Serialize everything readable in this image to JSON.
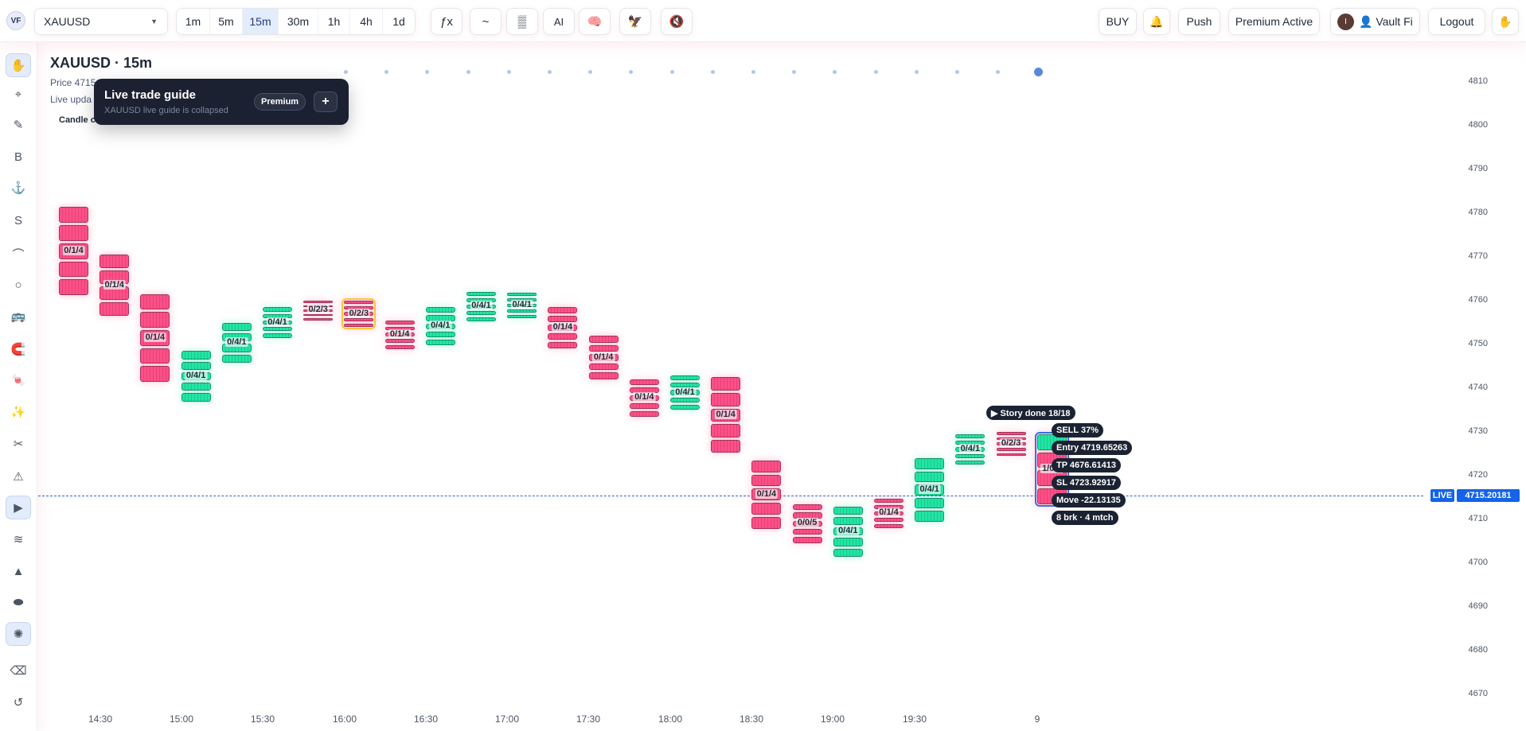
{
  "header": {
    "user_initials": "VF",
    "symbol": "XAUUSD",
    "timeframes": [
      "1m",
      "5m",
      "15m",
      "30m",
      "1h",
      "4h",
      "1d"
    ],
    "active_timeframe": "15m",
    "tools": [
      {
        "name": "formula-icon",
        "glyph": "ƒx"
      },
      {
        "name": "wave-icon",
        "glyph": "~"
      },
      {
        "name": "grid-pattern-icon",
        "glyph": "▒"
      },
      {
        "name": "ai-button",
        "glyph": "AI"
      },
      {
        "name": "brain-icon",
        "glyph": "🧠"
      },
      {
        "name": "eagle-icon",
        "glyph": "🦅"
      },
      {
        "name": "mute-icon",
        "glyph": "🔇"
      }
    ],
    "buy_label": "BUY",
    "bell_icon": "bell-icon",
    "push_label": "Push",
    "premium_label": "Premium Active",
    "account_initial": "I",
    "account_label": "👤 Vault Fi",
    "logout_label": "Logout",
    "hand_icon": "hand-icon"
  },
  "sidebar": {
    "tools": [
      {
        "name": "pan-tool",
        "glyph": "✋",
        "active": true
      },
      {
        "name": "crosshair-tool",
        "glyph": "⌖"
      },
      {
        "name": "pencil-tool",
        "glyph": "✎"
      },
      {
        "name": "b-tool",
        "glyph": "B"
      },
      {
        "name": "anchor-tool",
        "glyph": "⚓"
      },
      {
        "name": "s-tool",
        "glyph": "S"
      },
      {
        "name": "curve-tool",
        "glyph": "⌒"
      },
      {
        "name": "circle-tool",
        "glyph": "○"
      },
      {
        "name": "bus-tool",
        "glyph": "🚌"
      },
      {
        "name": "magnet-tool",
        "glyph": "🧲"
      },
      {
        "name": "candy-tool",
        "glyph": "🍬"
      },
      {
        "name": "sparkle-tool",
        "glyph": "✨"
      },
      {
        "name": "cut-tool",
        "glyph": "✂"
      },
      {
        "name": "warning-tool",
        "glyph": "⚠"
      },
      {
        "name": "play-tool",
        "glyph": "▶",
        "active": true
      },
      {
        "name": "waves-tool",
        "glyph": "≋"
      },
      {
        "name": "triangle-tool",
        "glyph": "▲"
      },
      {
        "name": "ellipse-tool",
        "glyph": "⬬"
      },
      {
        "name": "sun-tool",
        "glyph": "✺",
        "active": true
      },
      {
        "name": "eraser-tool",
        "glyph": "⌫"
      },
      {
        "name": "reset-tool",
        "glyph": "↺"
      }
    ]
  },
  "chart": {
    "title": "XAUUSD · 15m",
    "price_line": "Price 4715",
    "update_line": "Live upda",
    "candle_chip": "Candle c",
    "y_ticks": [
      "4810",
      "4800",
      "4790",
      "4780",
      "4770",
      "4760",
      "4750",
      "4740",
      "4730",
      "4720",
      "4710",
      "4700",
      "4690",
      "4680",
      "4670"
    ],
    "x_ticks": [
      "14:30",
      "15:00",
      "15:30",
      "16:00",
      "16:30",
      "17:00",
      "17:30",
      "18:00",
      "18:30",
      "19:00",
      "19:30",
      "9"
    ],
    "live_label": "LIVE",
    "live_price": "4715.20181"
  },
  "guide": {
    "title": "Live trade guide",
    "subtitle": "XAUUSD live guide is collapsed",
    "badge": "Premium",
    "toggle": "+"
  },
  "trade_tags": {
    "story": "▶ Story done 18/18",
    "signal": "SELL 37%",
    "entry": "Entry 4719.65263",
    "tp": "TP 4676.61413",
    "sl": "SL 4723.92917",
    "move": "Move -22.13135",
    "brk": "8 brk · 4 mtch"
  },
  "colors": {
    "bull": "#21e5a4",
    "bear": "#ff4f88",
    "live": "#1463e8",
    "highlight": "#f7c73a"
  },
  "candles": [
    {
      "dir": "bear",
      "high": 4781.5,
      "low": 4761.2,
      "blocks": 5,
      "label": "0/1/4"
    },
    {
      "dir": "bear",
      "high": 4770.5,
      "low": 4756.5,
      "blocks": 4,
      "label": "0/1/4"
    },
    {
      "dir": "bear",
      "high": 4761.5,
      "low": 4741.5,
      "blocks": 5,
      "label": "0/1/4"
    },
    {
      "dir": "bull",
      "high": 4748.5,
      "low": 4737.0,
      "blocks": 5,
      "label": "0/4/1"
    },
    {
      "dir": "bull",
      "high": 4755.0,
      "low": 4745.8,
      "blocks": 4,
      "label": "0/4/1"
    },
    {
      "dir": "bull",
      "high": 4758.5,
      "low": 4751.5,
      "blocks": 5,
      "label": "0/4/1"
    },
    {
      "dir": "bear",
      "high": 4760.0,
      "low": 4755.5,
      "blocks": 5,
      "label": "0/2/3"
    },
    {
      "dir": "bear",
      "high": 4760.0,
      "low": 4754.0,
      "blocks": 5,
      "label": "0/2/3",
      "highlight": true
    },
    {
      "dir": "bear",
      "high": 4755.5,
      "low": 4749.0,
      "blocks": 5,
      "label": "0/1/4"
    },
    {
      "dir": "bull",
      "high": 4758.5,
      "low": 4749.8,
      "blocks": 5,
      "label": "0/4/1"
    },
    {
      "dir": "bull",
      "high": 4762.0,
      "low": 4755.3,
      "blocks": 5,
      "label": "0/4/1"
    },
    {
      "dir": "bull",
      "high": 4761.8,
      "low": 4756.0,
      "blocks": 5,
      "label": "0/4/1"
    },
    {
      "dir": "bear",
      "high": 4758.5,
      "low": 4749.0,
      "blocks": 5,
      "label": "0/1/4"
    },
    {
      "dir": "bear",
      "high": 4752.0,
      "low": 4742.0,
      "blocks": 5,
      "label": "0/1/4"
    },
    {
      "dir": "bear",
      "high": 4742.0,
      "low": 4733.5,
      "blocks": 5,
      "label": "0/1/4"
    },
    {
      "dir": "bull",
      "high": 4743.0,
      "low": 4735.0,
      "blocks": 5,
      "label": "0/4/1"
    },
    {
      "dir": "bear",
      "high": 4742.5,
      "low": 4725.2,
      "blocks": 5,
      "label": "0/1/4"
    },
    {
      "dir": "bear",
      "high": 4723.5,
      "low": 4707.8,
      "blocks": 5,
      "label": "0/1/4"
    },
    {
      "dir": "bear",
      "high": 4713.5,
      "low": 4704.6,
      "blocks": 5,
      "label": "0/0/5"
    },
    {
      "dir": "bull",
      "high": 4713.0,
      "low": 4701.5,
      "blocks": 5,
      "label": "0/4/1"
    },
    {
      "dir": "bear",
      "high": 4714.8,
      "low": 4708.0,
      "blocks": 5,
      "label": "0/1/4"
    },
    {
      "dir": "bull",
      "high": 4724.0,
      "low": 4709.5,
      "blocks": 5,
      "label": "0/4/1"
    },
    {
      "dir": "bull",
      "high": 4729.5,
      "low": 4722.5,
      "blocks": 5,
      "label": "0/4/1"
    },
    {
      "dir": "bear",
      "high": 4730.0,
      "low": 4724.5,
      "blocks": 5,
      "label": "0/2/3"
    },
    {
      "dir": "bear",
      "high": 4729.5,
      "low": 4713.5,
      "blocks": 4,
      "label": "1/0/2",
      "last": true
    }
  ]
}
